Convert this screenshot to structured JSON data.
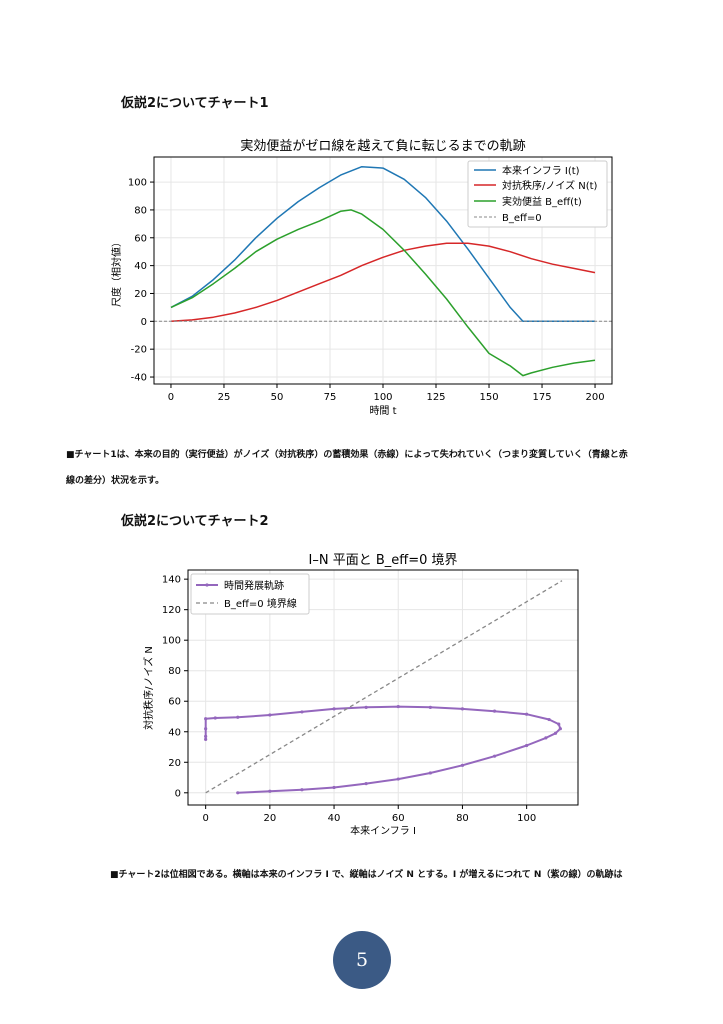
{
  "sections": {
    "chart1_heading": "仮説2についてチャート1",
    "chart1_caption_line1": "■チャート1は、本来の目的（実行便益）がノイズ（対抗秩序）の蓄積効果（赤線）によって失われていく（つまり変質していく（青線と赤",
    "chart1_caption_line2": "線の差分）状況を示す。",
    "chart2_heading": "仮説2についてチャート2",
    "chart2_caption": "■チャート2は位相図である。横軸は本来のインフラ I で、縦軸はノイズ N とする。I が増えるにつれて N（紫の線）の軌跡は"
  },
  "page_number": "5",
  "colors": {
    "infra": "#1f77b4",
    "noise": "#d62728",
    "benefit": "#2ca02c",
    "trajectory": "#9467bd",
    "boundary": "#888888",
    "page_badge": "#3b5a85"
  },
  "chart_data": [
    {
      "type": "line",
      "title": "実効便益がゼロ線を越えて負に転じるまでの軌跡",
      "xlabel": "時間 t",
      "ylabel": "尺度（相対値）",
      "xlim": [
        -8,
        208
      ],
      "ylim": [
        -45,
        118
      ],
      "xticks": [
        0,
        25,
        50,
        75,
        100,
        125,
        150,
        175,
        200
      ],
      "yticks": [
        -40,
        -20,
        0,
        20,
        40,
        60,
        80,
        100
      ],
      "grid": true,
      "legend_position": "top-right",
      "series": [
        {
          "name": "本来インフラ I(t)",
          "x": [
            0,
            10,
            20,
            30,
            40,
            50,
            60,
            70,
            80,
            90,
            100,
            110,
            120,
            130,
            140,
            150,
            160,
            166,
            170,
            180,
            190,
            200
          ],
          "values": [
            10,
            18,
            30,
            44,
            60,
            74,
            86,
            96,
            105,
            111,
            110,
            102,
            89,
            72,
            52,
            31,
            10,
            0,
            0,
            0,
            0,
            0
          ]
        },
        {
          "name": "対抗秩序/ノイズ N(t)",
          "x": [
            0,
            10,
            20,
            30,
            40,
            50,
            60,
            70,
            80,
            90,
            100,
            110,
            120,
            130,
            140,
            150,
            160,
            170,
            180,
            190,
            200
          ],
          "values": [
            0,
            1,
            3,
            6,
            10,
            15,
            21,
            27,
            33,
            40,
            46,
            51,
            54,
            56,
            56,
            54,
            50,
            45,
            41,
            38,
            35
          ]
        },
        {
          "name": "実効便益 B_eff(t)",
          "x": [
            0,
            10,
            20,
            30,
            40,
            50,
            60,
            70,
            80,
            85,
            90,
            100,
            110,
            120,
            130,
            140,
            150,
            160,
            166,
            170,
            180,
            190,
            200
          ],
          "values": [
            10,
            17,
            27,
            38,
            50,
            59,
            66,
            72,
            79,
            80,
            77,
            66,
            51,
            34,
            16,
            -4,
            -23,
            -32,
            -39,
            -37,
            -33,
            -30,
            -28
          ]
        },
        {
          "name": "B_eff=0",
          "x": [
            -8,
            208
          ],
          "values": [
            0,
            0
          ]
        }
      ]
    },
    {
      "type": "line",
      "title": "I–N 平面と B_eff=0 境界",
      "xlabel": "本来インフラ I",
      "ylabel": "対抗秩序/ノイズ N",
      "xlim": [
        -5.5,
        116
      ],
      "ylim": [
        -8,
        146
      ],
      "xticks": [
        0,
        20,
        40,
        60,
        80,
        100
      ],
      "yticks": [
        0,
        20,
        40,
        60,
        80,
        100,
        120,
        140
      ],
      "grid": true,
      "legend_position": "top-left",
      "series": [
        {
          "name": "時間発展軌跡",
          "x": [
            10,
            20,
            30,
            40,
            50,
            60,
            70,
            80,
            90,
            100,
            106,
            109,
            110.5,
            110,
            107,
            100,
            90,
            80,
            70,
            60,
            50,
            40,
            30,
            20,
            10,
            3,
            0,
            0,
            0,
            0
          ],
          "values": [
            0,
            1,
            2,
            3.5,
            6,
            9,
            13,
            18,
            24,
            31,
            36,
            39,
            42,
            45,
            48,
            51.5,
            53.5,
            55,
            56,
            56.5,
            56,
            55,
            53,
            51,
            49.5,
            49,
            48.5,
            42,
            37,
            35
          ]
        },
        {
          "name": "B_eff=0 境界線",
          "x": [
            0,
            111
          ],
          "values": [
            0,
            139
          ]
        }
      ]
    }
  ]
}
